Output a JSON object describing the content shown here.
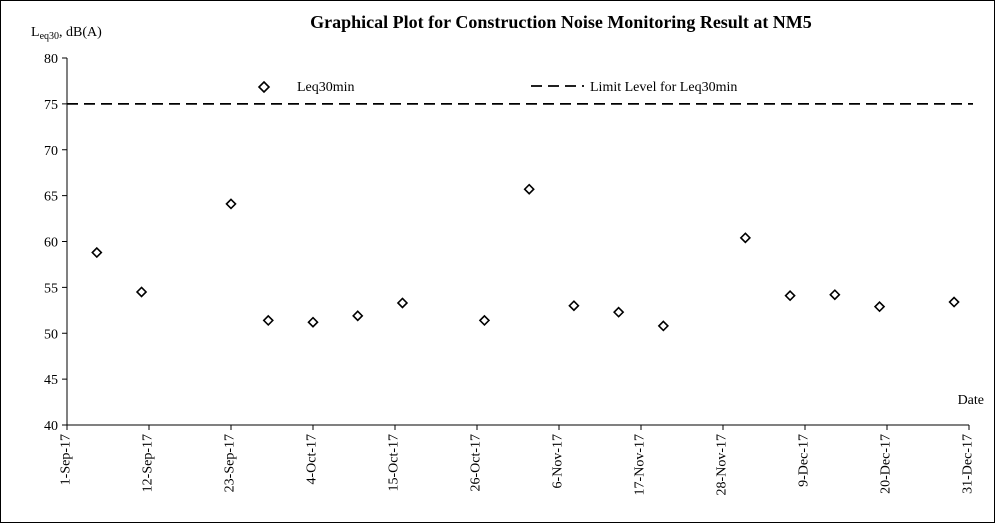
{
  "chart_data": {
    "type": "scatter",
    "title": "Graphical Plot for Construction Noise Monitoring Result at NM5",
    "ylabel_main": "L",
    "ylabel_sub": "eq30",
    "ylabel_rest": ", dB(A)",
    "xlabel": "Date",
    "ylim": [
      40,
      80
    ],
    "yticks": [
      40,
      45,
      50,
      55,
      60,
      65,
      70,
      75,
      80
    ],
    "xlim": [
      "2017-09-01",
      "2017-12-31"
    ],
    "xticks": [
      {
        "date": "2017-09-01",
        "label": "1-Sep-17"
      },
      {
        "date": "2017-09-12",
        "label": "12-Sep-17"
      },
      {
        "date": "2017-09-23",
        "label": "23-Sep-17"
      },
      {
        "date": "2017-10-04",
        "label": "4-Oct-17"
      },
      {
        "date": "2017-10-15",
        "label": "15-Oct-17"
      },
      {
        "date": "2017-10-26",
        "label": "26-Oct-17"
      },
      {
        "date": "2017-11-06",
        "label": "6-Nov-17"
      },
      {
        "date": "2017-11-17",
        "label": "17-Nov-17"
      },
      {
        "date": "2017-11-28",
        "label": "28-Nov-17"
      },
      {
        "date": "2017-12-09",
        "label": "9-Dec-17"
      },
      {
        "date": "2017-12-20",
        "label": "20-Dec-17"
      },
      {
        "date": "2017-12-31",
        "label": "31-Dec-17"
      }
    ],
    "series": [
      {
        "name": "Leq30min",
        "marker": "diamond",
        "points": [
          {
            "x": "2017-09-05",
            "y": 58.8
          },
          {
            "x": "2017-09-11",
            "y": 54.5
          },
          {
            "x": "2017-09-23",
            "y": 64.1
          },
          {
            "x": "2017-09-28",
            "y": 51.4
          },
          {
            "x": "2017-10-04",
            "y": 51.2
          },
          {
            "x": "2017-10-10",
            "y": 51.9
          },
          {
            "x": "2017-10-16",
            "y": 53.3
          },
          {
            "x": "2017-10-27",
            "y": 51.4
          },
          {
            "x": "2017-11-02",
            "y": 65.7
          },
          {
            "x": "2017-11-08",
            "y": 53.0
          },
          {
            "x": "2017-11-14",
            "y": 52.3
          },
          {
            "x": "2017-11-20",
            "y": 50.8
          },
          {
            "x": "2017-12-01",
            "y": 60.4
          },
          {
            "x": "2017-12-07",
            "y": 54.1
          },
          {
            "x": "2017-12-13",
            "y": 54.2
          },
          {
            "x": "2017-12-19",
            "y": 52.9
          },
          {
            "x": "2017-12-29",
            "y": 53.4
          }
        ]
      }
    ],
    "limit_line": {
      "name": "Limit Level for Leq30min",
      "value": 75,
      "style": "dashed"
    },
    "legend_placement": "top",
    "grid": false
  }
}
